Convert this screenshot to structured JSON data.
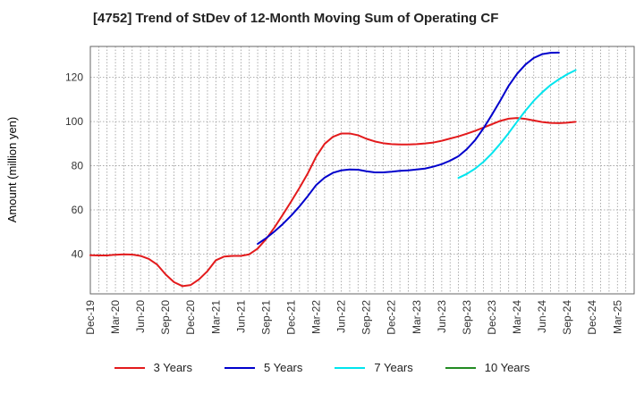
{
  "chart_data": {
    "type": "line",
    "title": "[4752]  Trend of StDev of 12-Month Moving Sum of Operating CF",
    "xlabel": "",
    "ylabel": "Amount (million yen)",
    "ylim": [
      22,
      134
    ],
    "yticks": [
      40,
      60,
      80,
      100,
      120
    ],
    "xtick_labels": [
      "Dec-19",
      "Mar-20",
      "Jun-20",
      "Sep-20",
      "Dec-20",
      "Mar-21",
      "Jun-21",
      "Sep-21",
      "Dec-21",
      "Mar-22",
      "Jun-22",
      "Sep-22",
      "Dec-22",
      "Mar-23",
      "Jun-23",
      "Sep-23",
      "Dec-23",
      "Mar-24",
      "Jun-24",
      "Sep-24",
      "Dec-24",
      "Mar-25"
    ],
    "x_months_count": 65,
    "grid": true,
    "legend_position": "bottom-center",
    "series": [
      {
        "name": "3 Years",
        "color": "#e31a1c",
        "start_index": 0,
        "values": [
          39.5,
          39.4,
          39.4,
          39.7,
          39.9,
          39.8,
          39.2,
          37.8,
          35.2,
          30.8,
          27.3,
          25.5,
          26.0,
          28.6,
          32.3,
          37.2,
          38.9,
          39.2,
          39.2,
          39.9,
          42.5,
          46.8,
          52.0,
          57.8,
          63.8,
          70.0,
          76.6,
          84.2,
          89.9,
          93.1,
          94.6,
          94.6,
          93.8,
          92.2,
          91.0,
          90.2,
          89.8,
          89.6,
          89.6,
          89.8,
          90.1,
          90.5,
          91.3,
          92.3,
          93.3,
          94.5,
          95.8,
          97.3,
          98.8,
          100.3,
          101.3,
          101.6,
          101.2,
          100.5,
          99.8,
          99.4,
          99.3,
          99.5,
          99.9
        ]
      },
      {
        "name": "5 Years",
        "color": "#0000cc",
        "start_index": 20,
        "values": [
          44.6,
          47.2,
          50.2,
          53.6,
          57.4,
          61.6,
          66.3,
          71.3,
          74.6,
          76.8,
          77.9,
          78.3,
          78.2,
          77.5,
          77.0,
          77.0,
          77.3,
          77.7,
          77.9,
          78.3,
          78.7,
          79.6,
          80.7,
          82.3,
          84.3,
          87.5,
          91.6,
          97.0,
          103.1,
          109.5,
          116.2,
          121.6,
          125.8,
          128.8,
          130.5,
          131.1,
          131.2
        ]
      },
      {
        "name": "7 Years",
        "color": "#00e5ee",
        "start_index": 44,
        "values": [
          74.5,
          76.3,
          78.7,
          81.8,
          85.6,
          90.0,
          94.8,
          99.9,
          104.9,
          109.4,
          113.2,
          116.5,
          119.1,
          121.4,
          123.3
        ]
      },
      {
        "name": "10 Years",
        "color": "#228b22",
        "start_index": 0,
        "values": []
      }
    ]
  }
}
